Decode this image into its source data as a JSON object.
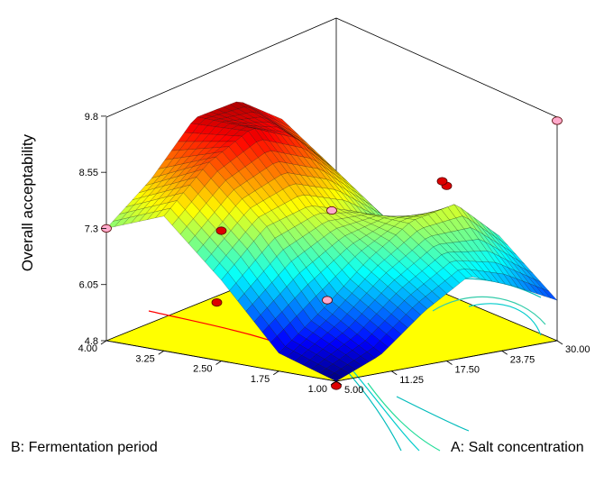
{
  "chart_data": {
    "type": "surface3d",
    "title": "",
    "zlabel": "Overall acceptability",
    "xlabel": "A: Salt concentration",
    "ylabel": "B: Fermentation period",
    "x_ticks": [
      "5.00",
      "11.25",
      "17.50",
      "23.75",
      "30.00"
    ],
    "y_ticks": [
      "1.00",
      "1.75",
      "2.50",
      "3.25",
      "4.00"
    ],
    "z_ticks": [
      "4.8",
      "6.05",
      "7.3",
      "8.55",
      "9.8"
    ],
    "xlim": [
      5,
      30
    ],
    "ylim": [
      1,
      4
    ],
    "zlim": [
      4.8,
      9.8
    ],
    "grid": false,
    "colormap": "jet",
    "floor_color": "#ffff00",
    "surface_grid_points_z": [
      [
        7.3,
        8.2,
        9.4,
        9.6,
        9.0,
        7.2
      ],
      [
        7.8,
        8.8,
        9.4,
        9.0,
        8.0,
        6.6
      ],
      [
        6.6,
        7.6,
        7.9,
        7.6,
        7.0,
        6.0
      ],
      [
        5.2,
        6.0,
        6.9,
        7.6,
        7.8,
        6.9
      ],
      [
        4.8,
        5.2,
        6.0,
        6.6,
        6.2,
        5.7
      ]
    ],
    "design_points": [
      {
        "a": 5.0,
        "b": 1.0,
        "z": 4.7,
        "color": "#dd0000"
      },
      {
        "a": 5.0,
        "b": 4.0,
        "z": 7.3,
        "color": "#ffaacc"
      },
      {
        "a": 30.0,
        "b": 4.0,
        "z": 4.8,
        "color": "#ffaacc"
      },
      {
        "a": 17.5,
        "b": 4.0,
        "z": 5.2,
        "color": "#dd0000"
      },
      {
        "a": 5.0,
        "b": 2.5,
        "z": 7.7,
        "color": "#dd0000"
      },
      {
        "a": 17.5,
        "b": 1.0,
        "z": 8.7,
        "color": "#dd0000"
      },
      {
        "a": 30.0,
        "b": 2.5,
        "z": 7.9,
        "color": "#dd0000"
      },
      {
        "a": 17.5,
        "b": 2.5,
        "z": 7.7,
        "color": "#ffaacc"
      },
      {
        "a": 30.0,
        "b": 1.0,
        "z": 9.7,
        "color": "#ffaacc"
      }
    ]
  }
}
